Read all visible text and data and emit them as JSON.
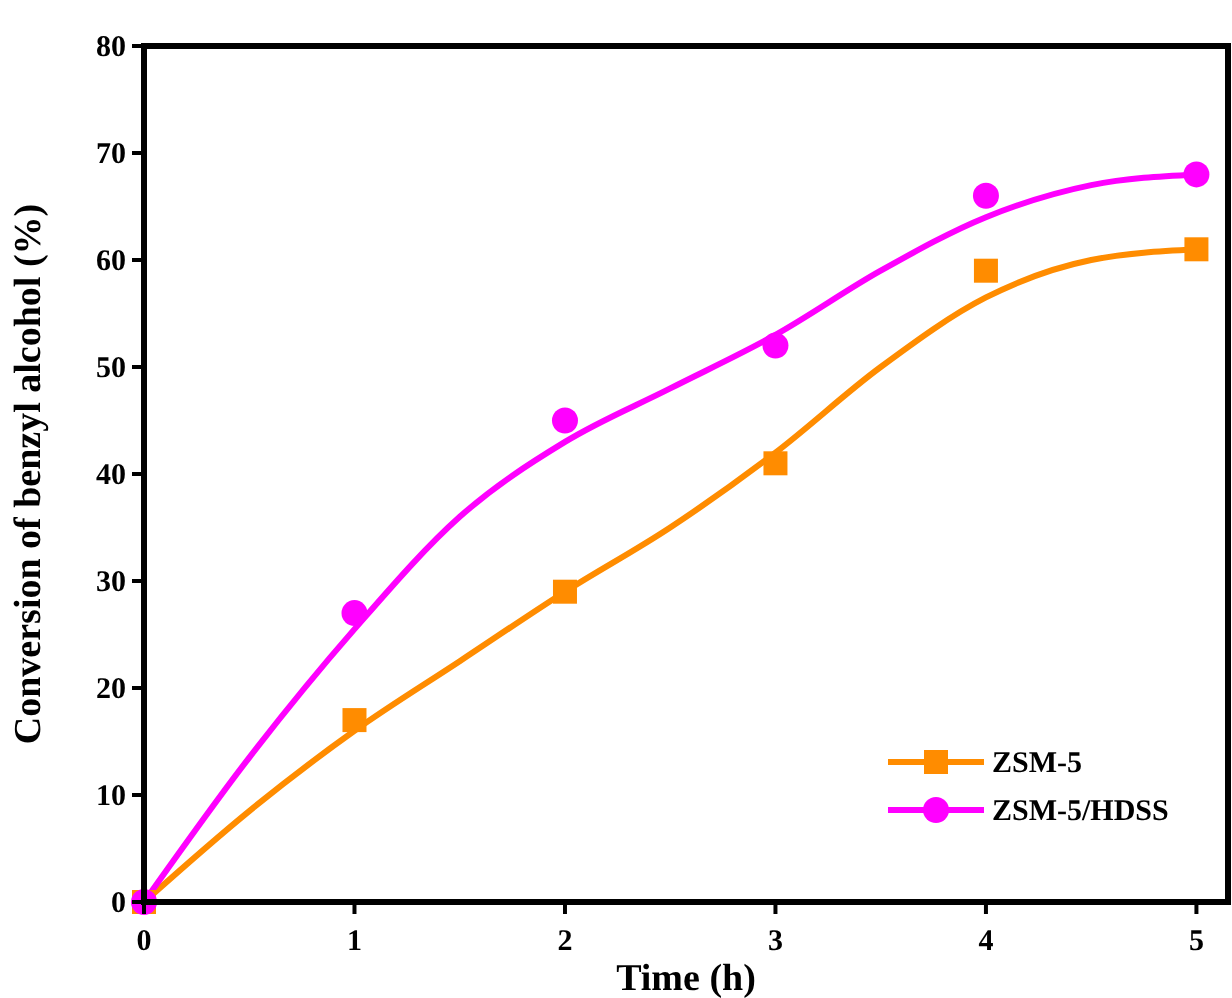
{
  "chart_data": {
    "type": "scatter",
    "xlabel": "Time (h)",
    "ylabel": "Conversion of benzyl alcohol (%)",
    "xlim": [
      0,
      5.15
    ],
    "ylim": [
      0,
      80
    ],
    "xticks": [
      0,
      1,
      2,
      3,
      4,
      5
    ],
    "yticks": [
      0,
      10,
      20,
      30,
      40,
      50,
      60,
      70,
      80
    ],
    "legend": "bottom right",
    "grid": false,
    "series": [
      {
        "name": "ZSM-5",
        "color": "#ff8c00",
        "marker": "square",
        "x": [
          0,
          1,
          2,
          3,
          4,
          5
        ],
        "values": [
          0,
          17,
          29,
          41,
          59,
          61
        ]
      },
      {
        "name": "ZSM-5/HDSS",
        "color": "#ff00ff",
        "marker": "circle",
        "x": [
          0,
          1,
          2,
          3,
          4,
          5
        ],
        "values": [
          0,
          27,
          45,
          52,
          66,
          68
        ]
      },
      {
        "type": "line",
        "color": "#ff8c00",
        "x": [
          0,
          0.5,
          1,
          1.5,
          2,
          2.5,
          3,
          3.5,
          4,
          4.5,
          5
        ],
        "values": [
          0,
          8.5,
          16,
          22.5,
          29,
          35,
          42,
          50,
          56.5,
          60,
          61
        ]
      },
      {
        "type": "line",
        "color": "#ff00ff",
        "x": [
          0,
          0.5,
          1,
          1.5,
          2,
          2.5,
          3,
          3.5,
          4,
          4.5,
          5
        ],
        "values": [
          0,
          13.5,
          25.5,
          36,
          43,
          48,
          53,
          59,
          64,
          67,
          68
        ]
      }
    ]
  }
}
